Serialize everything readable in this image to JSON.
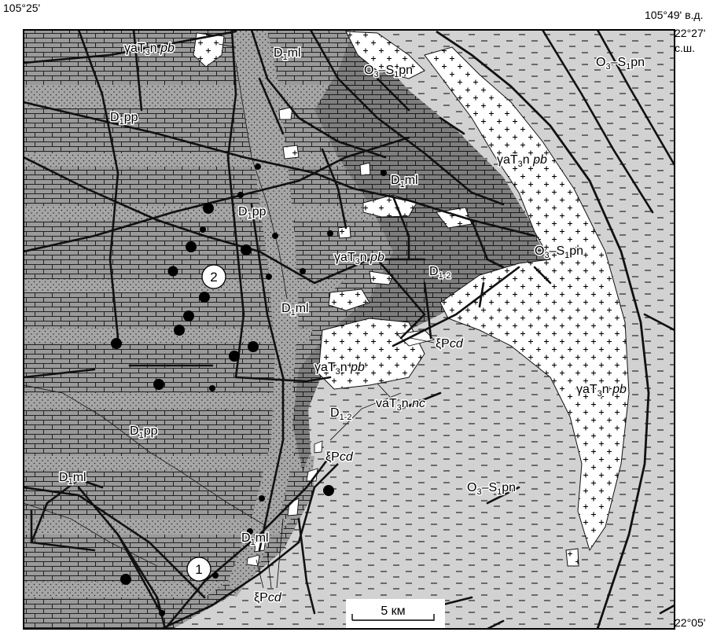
{
  "coordinates": {
    "top_left": "105°25'",
    "top_right_lon": "105°49' в.д.",
    "top_right_lat": "22°27'",
    "top_right_lat_unit": "с.ш.",
    "bottom_right": "22°05'"
  },
  "scale_bar": {
    "label": "5 км"
  },
  "units": [
    {
      "key": "o3s1pn",
      "base": "O",
      "s1": "3",
      "mid": "–S",
      "s2": "1",
      "tail": "pn"
    },
    {
      "key": "d1pp",
      "base": "D",
      "s1": "1",
      "tail": "pp"
    },
    {
      "key": "d1ml",
      "base": "D",
      "s1": "1",
      "tail": "ml"
    },
    {
      "key": "d12",
      "base": "D",
      "s1": "1-2"
    },
    {
      "key": "gat3npb",
      "base": "γaT",
      "s1": "3",
      "mid": "n ",
      "tail_italic": "pb"
    },
    {
      "key": "vat3nnc",
      "base": "vaT",
      "s1": "3",
      "mid": "n ",
      "tail_italic": "nc"
    },
    {
      "key": "xipcd",
      "base": "ξP",
      "tail_italic": "cd"
    }
  ],
  "deposits": [
    {
      "number": "1"
    },
    {
      "number": "2"
    }
  ],
  "colors": {
    "shale_fill": "#d2d2d2",
    "limestone_fill": "#9a9a9a",
    "dark_unit_fill": "#7e7e7e",
    "granite_fill": "#ffffff",
    "fault": "#111111"
  }
}
